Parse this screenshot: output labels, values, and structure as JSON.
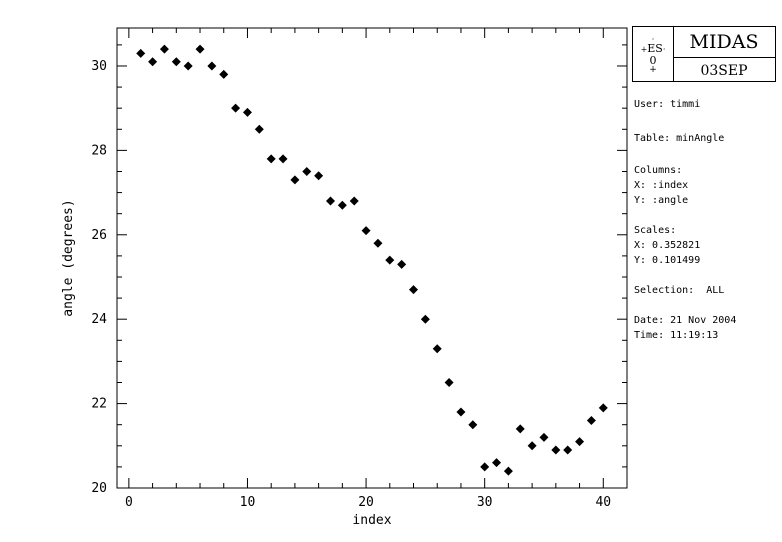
{
  "chart_data": {
    "type": "scatter",
    "xlabel": "index",
    "ylabel": "angle (degrees)",
    "xlim": [
      -1,
      42
    ],
    "ylim": [
      20,
      30.9
    ],
    "x_ticks": [
      0,
      10,
      20,
      30,
      40
    ],
    "y_ticks": [
      20,
      22,
      24,
      26,
      28,
      30
    ],
    "marker": "diamond",
    "points": [
      [
        1,
        30.3
      ],
      [
        2,
        30.1
      ],
      [
        3,
        30.4
      ],
      [
        4,
        30.1
      ],
      [
        5,
        30.0
      ],
      [
        6,
        30.4
      ],
      [
        7,
        30.0
      ],
      [
        8,
        29.8
      ],
      [
        9,
        29.0
      ],
      [
        10,
        28.9
      ],
      [
        11,
        28.5
      ],
      [
        12,
        27.8
      ],
      [
        13,
        27.8
      ],
      [
        14,
        27.3
      ],
      [
        15,
        27.5
      ],
      [
        16,
        27.4
      ],
      [
        17,
        26.8
      ],
      [
        18,
        26.7
      ],
      [
        19,
        26.8
      ],
      [
        20,
        26.1
      ],
      [
        21,
        25.8
      ],
      [
        22,
        25.4
      ],
      [
        23,
        25.3
      ],
      [
        24,
        24.7
      ],
      [
        25,
        24.0
      ],
      [
        26,
        23.3
      ],
      [
        27,
        22.5
      ],
      [
        28,
        21.8
      ],
      [
        29,
        21.5
      ],
      [
        30,
        20.5
      ],
      [
        31,
        20.6
      ],
      [
        32,
        20.4
      ],
      [
        33,
        21.4
      ],
      [
        34,
        21.0
      ],
      [
        35,
        21.2
      ],
      [
        36,
        20.9
      ],
      [
        37,
        20.9
      ],
      [
        38,
        21.1
      ],
      [
        39,
        21.6
      ],
      [
        40,
        21.9
      ]
    ]
  },
  "logo": {
    "title": "MIDAS",
    "date": "03SEP",
    "eso_mark": "ES"
  },
  "info": {
    "user": "User: timmi",
    "table": "Table: minAngle",
    "columns_head": "Columns:",
    "columns_x": "X: :index",
    "columns_y": "Y: :angle",
    "scales_head": "Scales:",
    "scales_x": "X: 0.352821",
    "scales_y": "Y: 0.101499",
    "selection": "Selection:  ALL",
    "date": "Date: 21 Nov 2004",
    "time": "Time: 11:19:13"
  }
}
